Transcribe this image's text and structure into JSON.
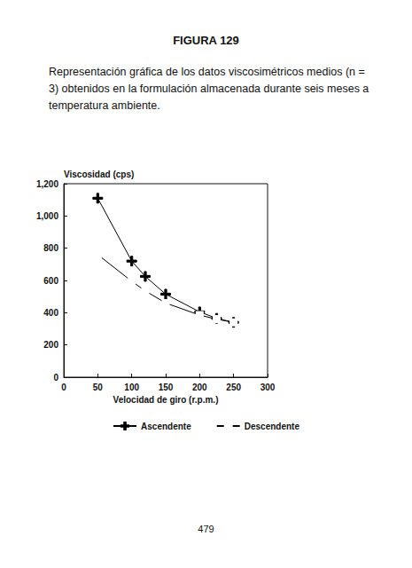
{
  "chart_data": {
    "type": "line",
    "title": "FIGURA 129",
    "subtitle": "Representación gráfica de los datos viscosimétricos medios (n = 3) obtenidos en la formulación almacenada durante seis meses a temperatura ambiente.",
    "annotations": [
      "479"
    ],
    "x_label": "Velocidad de giro (r.p.m.)",
    "y_label": "Viscosidad (cps)",
    "x": [
      50,
      100,
      120,
      150,
      200,
      225,
      250
    ],
    "series": [
      {
        "name": "Ascendente",
        "color": "#000000",
        "marker": "plus",
        "line_style": "solid",
        "values": [
          1110,
          720,
          625,
          515,
          405,
          365,
          340
        ]
      },
      {
        "name": "Descendente",
        "color": "#000000",
        "marker": "square",
        "line_style": "solid",
        "values": [
          760,
          595,
          535,
          460,
          385,
          360,
          340
        ]
      }
    ],
    "xlim": [
      0,
      300
    ],
    "xticks": [
      0,
      50,
      100,
      150,
      200,
      250,
      300
    ],
    "ylim": [
      0,
      1200
    ],
    "yticks": [
      0,
      200,
      400,
      600,
      800,
      1000,
      1200
    ],
    "grid": false,
    "legend": "bottom"
  }
}
